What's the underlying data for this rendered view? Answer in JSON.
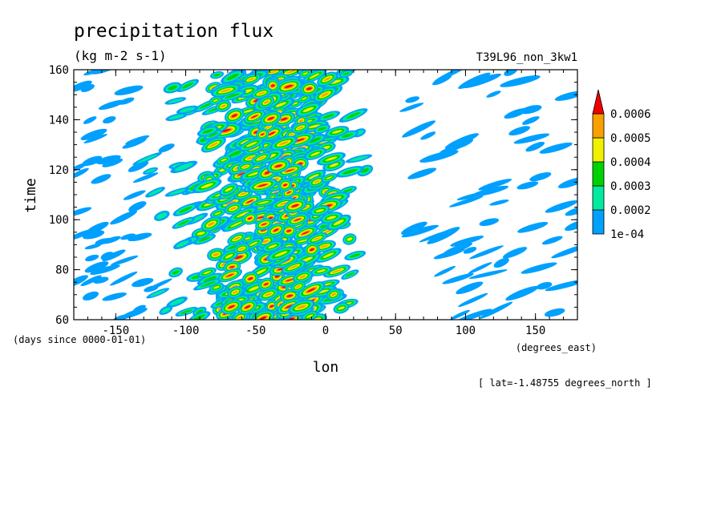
{
  "chart_data": {
    "type": "heatmap",
    "title": "precipitation flux",
    "subtitle": "(kg m-2 s-1)",
    "run_label": "T39L96_non_3kw1",
    "xlabel": "lon",
    "ylabel": "time",
    "x_units": "(degrees_east)",
    "y_units": "(days since 0000-01-01)",
    "footnote": "[ lat=-1.48755 degrees_north ]",
    "xlim": [
      -180,
      180
    ],
    "ylim": [
      60,
      160
    ],
    "x_ticks": [
      {
        "value": -150,
        "label": "-150"
      },
      {
        "value": -100,
        "label": "-100"
      },
      {
        "value": -50,
        "label": "-50"
      },
      {
        "value": 0,
        "label": "0"
      },
      {
        "value": 50,
        "label": "50"
      },
      {
        "value": 100,
        "label": "100"
      },
      {
        "value": 150,
        "label": "150"
      }
    ],
    "y_ticks": [
      {
        "value": 60,
        "label": "60"
      },
      {
        "value": 80,
        "label": "80"
      },
      {
        "value": 100,
        "label": "100"
      },
      {
        "value": 120,
        "label": "120"
      },
      {
        "value": 140,
        "label": "140"
      },
      {
        "value": 160,
        "label": "160"
      }
    ],
    "colorbar": {
      "levels": [
        {
          "label": "1e-04",
          "value": 0.0001,
          "color": "#00a0ff"
        },
        {
          "label": "0.0002",
          "value": 0.0002,
          "color": "#00eaa0"
        },
        {
          "label": "0.0003",
          "value": 0.0003,
          "color": "#00d200"
        },
        {
          "label": "0.0004",
          "value": 0.0004,
          "color": "#f0f000"
        },
        {
          "label": "0.0005",
          "value": 0.0005,
          "color": "#f8a000"
        },
        {
          "label": "0.0006",
          "value": 0.0006,
          "color": "#f00000"
        }
      ],
      "extend": "max"
    },
    "field_pattern": {
      "description_free": true,
      "slope_deg_per_day": 5,
      "blob_count": 620,
      "seed": 7
    }
  }
}
